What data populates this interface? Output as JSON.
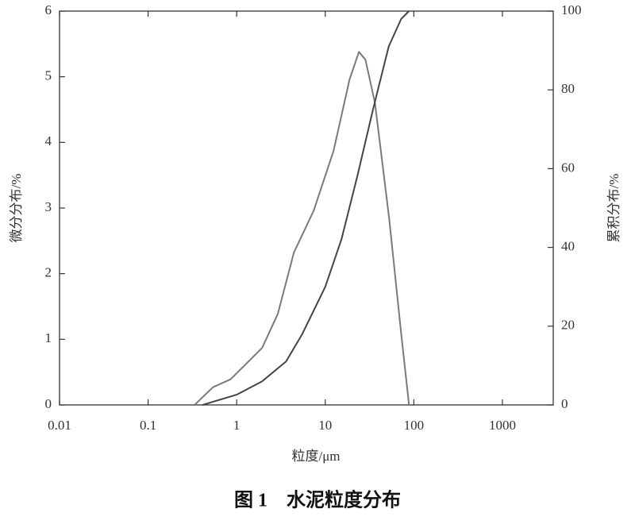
{
  "chart_data": {
    "type": "line",
    "caption": "图 1　水泥粒度分布",
    "xlabel": "粒度/μm",
    "ylabel": "微分分布/%",
    "y2label": "累积分布/%",
    "xscale": "log",
    "xlim": [
      0.01,
      3750
    ],
    "xticks": [
      0.01,
      0.1,
      1,
      10,
      100,
      1000
    ],
    "ylim": [
      0,
      6
    ],
    "yticks": [
      0,
      1,
      2,
      3,
      4,
      5,
      6
    ],
    "y2lim": [
      0,
      100
    ],
    "y2ticks": [
      0,
      20,
      40,
      60,
      80,
      100
    ],
    "series": [
      {
        "name": "微分分布",
        "color": "#7a7a7a",
        "axis": "y",
        "x": [
          0.335,
          0.54,
          0.85,
          1.16,
          1.94,
          2.92,
          4.42,
          7.4,
          12.4,
          18.8,
          24,
          28.4,
          36.4,
          52.7,
          71.9,
          88.3
        ],
        "values": [
          0,
          0.27,
          0.39,
          0.57,
          0.87,
          1.39,
          2.32,
          2.96,
          3.87,
          4.96,
          5.38,
          5.26,
          4.6,
          2.84,
          1.09,
          0
        ]
      },
      {
        "name": "累积分布",
        "color": "#444444",
        "axis": "y2",
        "x": [
          0.41,
          1,
          1.94,
          3.6,
          5.5,
          10,
          15.2,
          23,
          34.6,
          52,
          72,
          88
        ],
        "values": [
          0,
          2.6,
          6,
          11,
          18,
          30,
          42,
          58,
          75,
          91,
          98,
          100
        ]
      }
    ]
  }
}
